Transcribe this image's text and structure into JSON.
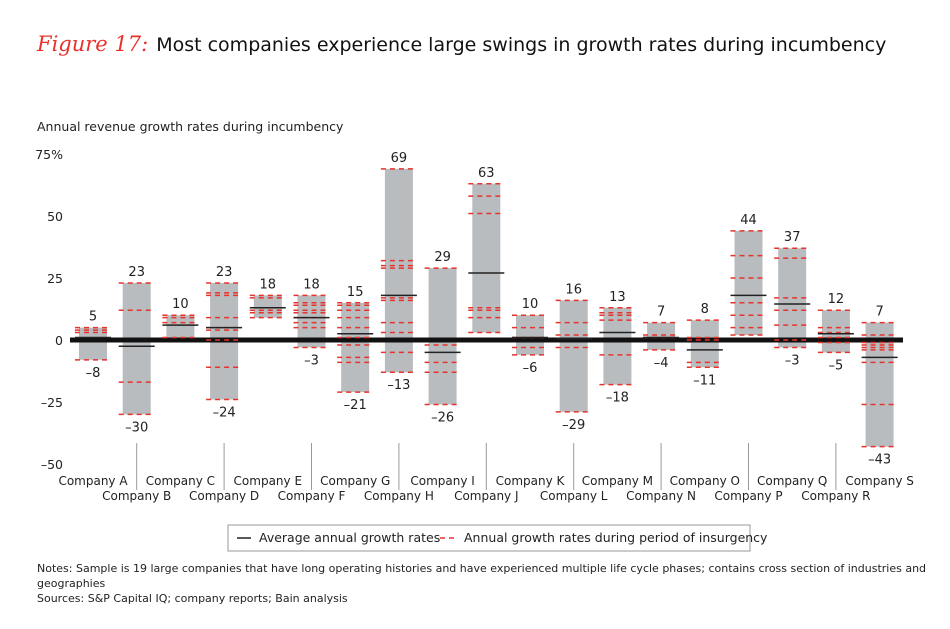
{
  "title": {
    "figure": "Figure 17:",
    "text": "Most companies experience large swings in growth rates during incumbency"
  },
  "chart_data": {
    "type": "bar",
    "subtype": "floating range bars with markers",
    "ylabel": "Annual revenue growth rates during incumbency",
    "ylim": [
      -50,
      75
    ],
    "yticks": [
      {
        "v": 75,
        "label": "75%"
      },
      {
        "v": 50,
        "label": "50"
      },
      {
        "v": 25,
        "label": "25"
      },
      {
        "v": 0,
        "label": "0"
      },
      {
        "v": -25,
        "label": "-25"
      },
      {
        "v": -50,
        "label": "-50"
      }
    ],
    "grid": false,
    "legend_placement": "bottom-center",
    "colors": {
      "bar": "#b9bcbe",
      "average": "#222222",
      "insurgency": "#e8322c",
      "zero_line": "#111111"
    },
    "legend": [
      {
        "label": "Average annual growth rates",
        "style": "solid"
      },
      {
        "label": "Annual growth rates during period of insurgency",
        "style": "dashed"
      }
    ],
    "categories": [
      "Company A",
      "Company B",
      "Company C",
      "Company D",
      "Company E",
      "Company F",
      "Company G",
      "Company H",
      "Company I",
      "Company J",
      "Company K",
      "Company L",
      "Company M",
      "Company N",
      "Company O",
      "Company P",
      "Company Q",
      "Company R",
      "Company S"
    ],
    "max": [
      5,
      23,
      10,
      23,
      18,
      18,
      15,
      69,
      29,
      63,
      10,
      16,
      13,
      7,
      8,
      44,
      37,
      12,
      7
    ],
    "min": [
      -8,
      -30,
      1,
      -24,
      9,
      -3,
      -21,
      -13,
      -26,
      3,
      -6,
      -29,
      -18,
      -4,
      -11,
      2,
      -3,
      -5,
      -43
    ],
    "max_labels": [
      "5",
      "23",
      "10",
      "23",
      "18",
      "18",
      "15",
      "69",
      "29",
      "63",
      "10",
      "16",
      "13",
      "7",
      "8",
      "44",
      "37",
      "12",
      "7"
    ],
    "min_labels": [
      "–8",
      "–30",
      "",
      "–24",
      "",
      "–3",
      "–21",
      "–13",
      "–26",
      "",
      "–6",
      "–29",
      "–18",
      "–4",
      "–11",
      "",
      "–3",
      "–5",
      "–43"
    ],
    "average": [
      1,
      -2.5,
      6,
      5,
      13,
      9,
      2.5,
      18,
      -5,
      27,
      1,
      0.5,
      3,
      1,
      -4,
      18,
      14.5,
      2.5,
      -7
    ],
    "insurgency": [
      [
        5,
        4,
        3,
        -8
      ],
      [
        23,
        12,
        -17,
        -30
      ],
      [
        10,
        9,
        7,
        1
      ],
      [
        23,
        19,
        18,
        9,
        5,
        4,
        0,
        -11,
        -24
      ],
      [
        18,
        17,
        12,
        11,
        9
      ],
      [
        18,
        15,
        14,
        12,
        11,
        9,
        7,
        5,
        -3
      ],
      [
        15,
        14,
        12,
        9,
        5,
        1,
        -2,
        -7,
        -9,
        -21
      ],
      [
        69,
        32,
        30,
        29,
        17,
        16,
        7,
        3,
        -5,
        -13
      ],
      [
        29,
        -2,
        -9,
        -13,
        -26
      ],
      [
        63,
        58,
        51,
        13,
        12,
        9,
        3
      ],
      [
        10,
        5,
        1,
        -3,
        -6
      ],
      [
        16,
        7,
        2,
        -3,
        -29
      ],
      [
        13,
        11,
        10,
        8,
        -6,
        -18
      ],
      [
        7,
        2,
        1,
        -4
      ],
      [
        8,
        1,
        0,
        -9,
        -11
      ],
      [
        44,
        34,
        25,
        15,
        10,
        5,
        2
      ],
      [
        37,
        33,
        17,
        12,
        6,
        0,
        -3
      ],
      [
        12,
        5,
        3,
        1,
        -1,
        -5
      ],
      [
        7,
        2,
        -1,
        -2,
        -3,
        -4,
        -9,
        -26,
        -43
      ]
    ]
  },
  "notes": {
    "line1": "Notes: Sample is 19 large companies that have long operating histories and have experienced multiple life cycle phases; contains cross section of industries and geographies",
    "line2": "Sources: S&P Capital IQ; company reports; Bain analysis"
  }
}
